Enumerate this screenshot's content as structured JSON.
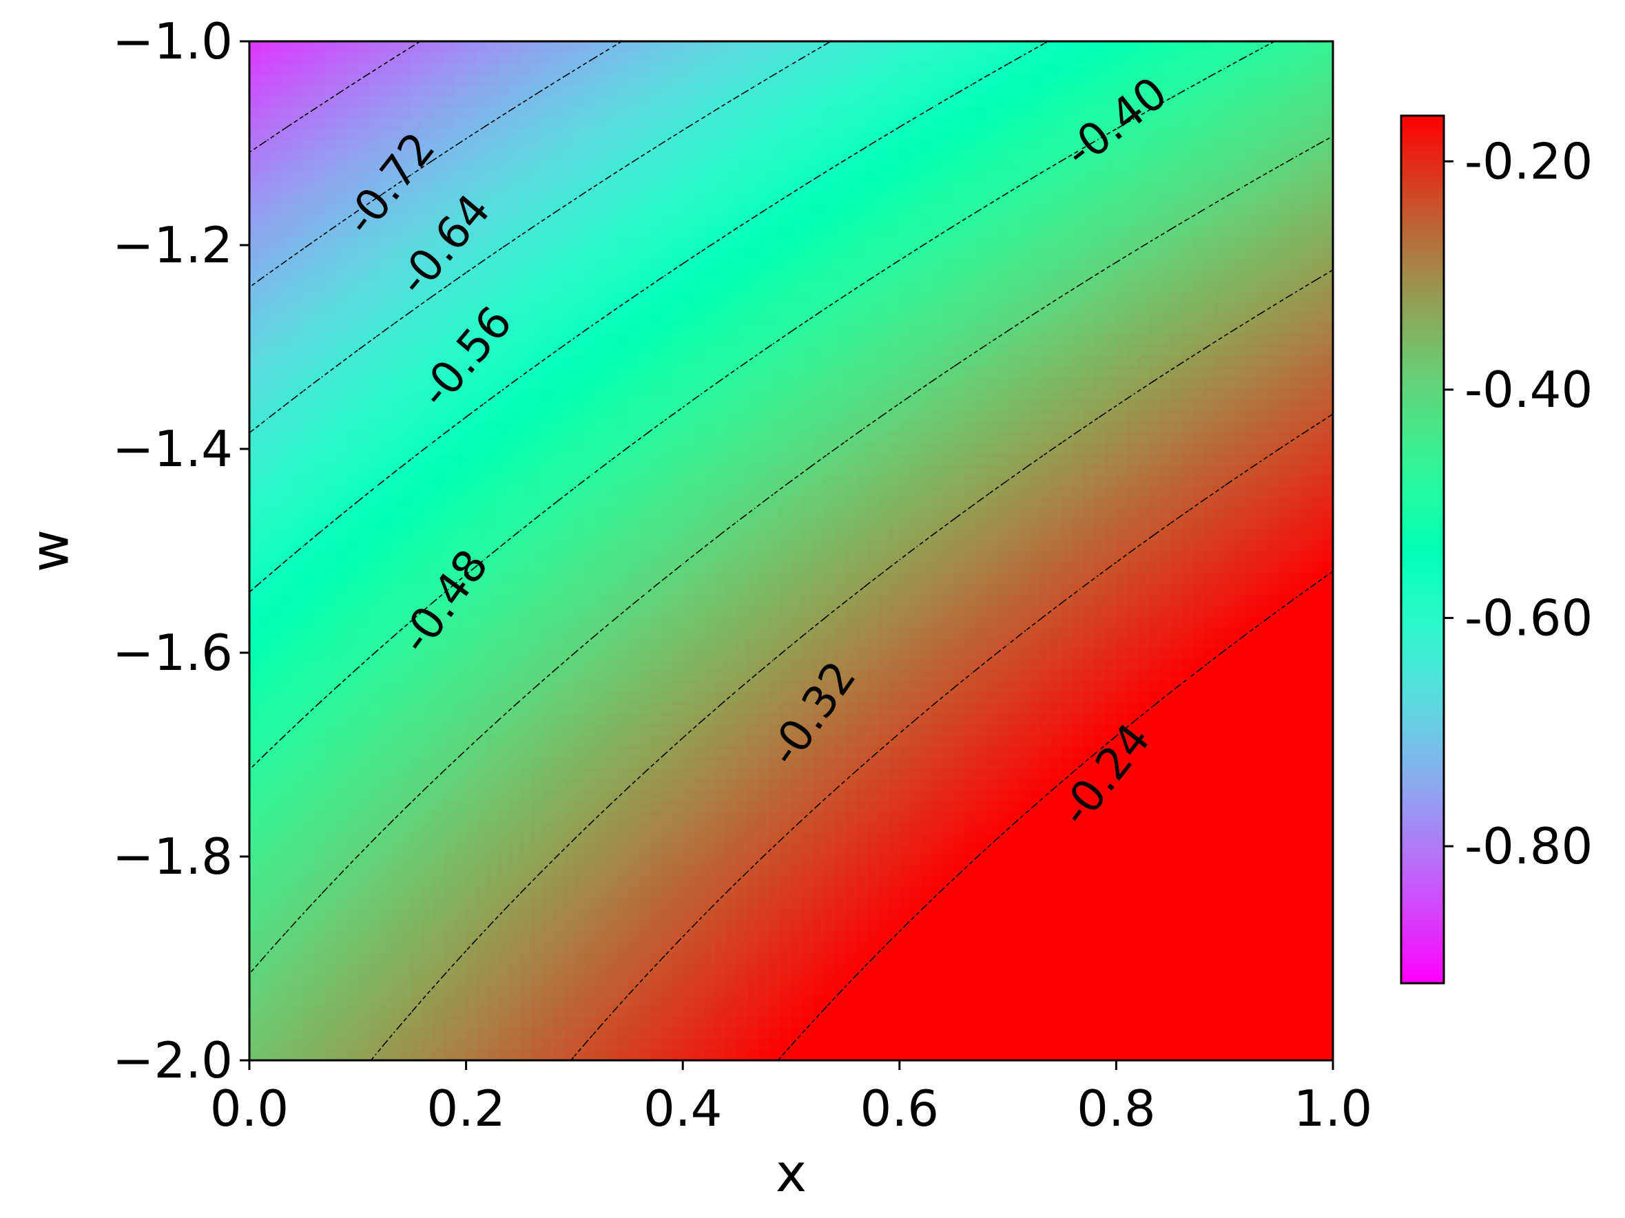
{
  "chart_data": {
    "type": "heatmap",
    "title": "",
    "xlabel": "x",
    "ylabel": "w",
    "xlim": [
      0.0,
      1.0
    ],
    "ylim": [
      -2.0,
      -1.0
    ],
    "x_ticks": [
      "0.0",
      "0.2",
      "0.4",
      "0.6",
      "0.8",
      "1.0"
    ],
    "x_tick_values": [
      0.0,
      0.2,
      0.4,
      0.6,
      0.8,
      1.0
    ],
    "y_ticks": [
      "−2.0",
      "−1.8",
      "−1.6",
      "−1.4",
      "−1.2",
      "−1.0"
    ],
    "y_tick_values": [
      -2.0,
      -1.8,
      -1.6,
      -1.4,
      -1.2,
      -1.0
    ],
    "colormap": "rainbow",
    "color_range": [
      -0.92,
      -0.16
    ],
    "colorbar_ticks": [
      "-0.20",
      "-0.40",
      "-0.60",
      "-0.80"
    ],
    "colorbar_tick_values": [
      -0.2,
      -0.4,
      -0.6,
      -0.8
    ],
    "contour_style": "dashed black",
    "contour_levels": [
      -0.8,
      -0.72,
      -0.64,
      -0.56,
      -0.48,
      -0.4,
      -0.32,
      -0.24,
      -0.16
    ],
    "contour_labels": [
      {
        "text": "-0.72",
        "x": 0.13,
        "w": -1.14,
        "angle": -52
      },
      {
        "text": "-0.64",
        "x": 0.18,
        "w": -1.2,
        "angle": -50
      },
      {
        "text": "-0.56",
        "x": 0.2,
        "w": -1.31,
        "angle": -50
      },
      {
        "text": "-0.48",
        "x": 0.18,
        "w": -1.55,
        "angle": -54
      },
      {
        "text": "-0.40",
        "x": 0.8,
        "w": -1.08,
        "angle": -38
      },
      {
        "text": "-0.32",
        "x": 0.52,
        "w": -1.66,
        "angle": -55
      },
      {
        "text": "-0.24",
        "x": 0.79,
        "w": -1.72,
        "angle": -52
      }
    ],
    "grid": false
  }
}
